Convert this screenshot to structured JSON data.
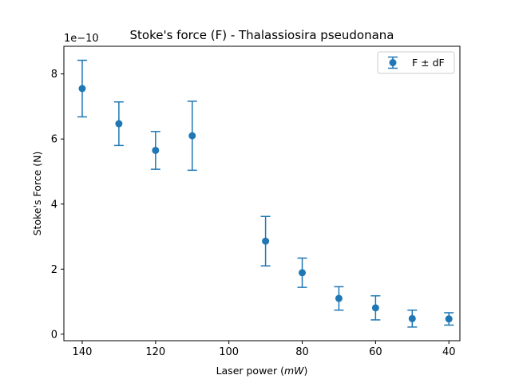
{
  "chart_data": {
    "type": "scatter",
    "title": "Stoke's force (F) - Thalassiosira pseudonana",
    "xlabel_main": "Laser power (",
    "xlabel_unit": "mW",
    "xlabel_close": ")",
    "ylabel": "Stoke's Force (N)",
    "y_multiplier": "1e−10",
    "x_inverted": true,
    "xlim": [
      145,
      37
    ],
    "ylim": [
      -0.2,
      8.85
    ],
    "x_ticks": [
      140,
      120,
      100,
      80,
      60,
      40
    ],
    "y_ticks": [
      0,
      2,
      4,
      6,
      8
    ],
    "grid": false,
    "legend_position": "top-right",
    "series": [
      {
        "name": "F ± dF",
        "color": "#1f77b4",
        "x": [
          140,
          130,
          120,
          110,
          90,
          80,
          70,
          60,
          50,
          40
        ],
        "y": [
          7.55,
          6.47,
          5.65,
          6.1,
          2.86,
          1.89,
          1.1,
          0.81,
          0.48,
          0.47
        ],
        "yerr": [
          0.87,
          0.67,
          0.58,
          1.06,
          0.76,
          0.45,
          0.36,
          0.37,
          0.26,
          0.19
        ]
      }
    ]
  }
}
